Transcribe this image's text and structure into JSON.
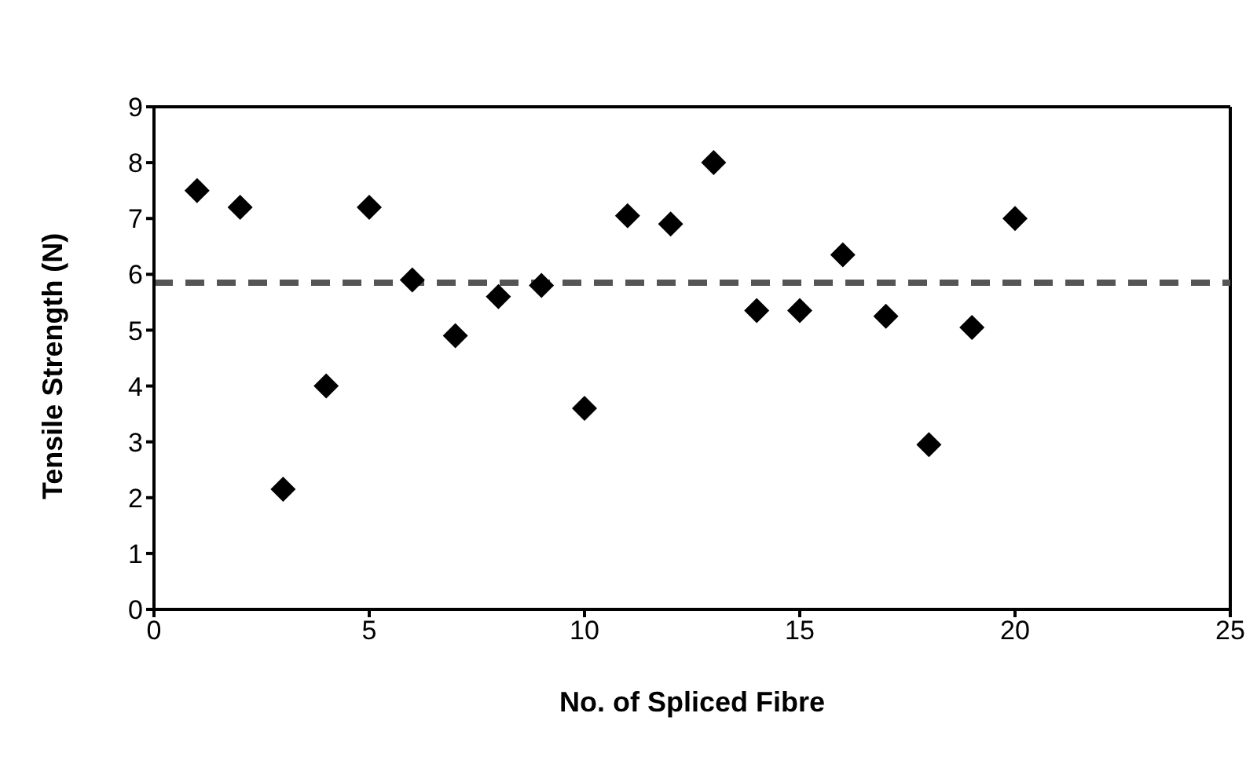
{
  "chart_data": {
    "type": "scatter",
    "xlabel": "No. of Spliced Fibre",
    "ylabel": "Tensile Strength (N)",
    "x": [
      1,
      2,
      3,
      4,
      5,
      6,
      7,
      8,
      9,
      10,
      11,
      12,
      13,
      14,
      15,
      16,
      17,
      18,
      19,
      20
    ],
    "series": [
      {
        "color": "#000000",
        "values": [
          7.5,
          7.2,
          2.15,
          4.0,
          7.2,
          5.9,
          4.9,
          5.6,
          5.8,
          3.6,
          7.05,
          6.9,
          8.0,
          5.35,
          5.35,
          6.35,
          5.25,
          2.95,
          5.05,
          7.0
        ]
      }
    ],
    "marker": "diamond",
    "xlim": [
      0,
      25
    ],
    "xticks": [
      0,
      5,
      10,
      15,
      20,
      25
    ],
    "ylim": [
      0,
      9
    ],
    "yticks": [
      0,
      1,
      2,
      3,
      4,
      5,
      6,
      7,
      8,
      9
    ],
    "grid": false,
    "legend": false,
    "ref_lines": [
      {
        "axis": "y",
        "value": 5.85,
        "color": "#555555",
        "line_style": "dashed"
      }
    ]
  }
}
